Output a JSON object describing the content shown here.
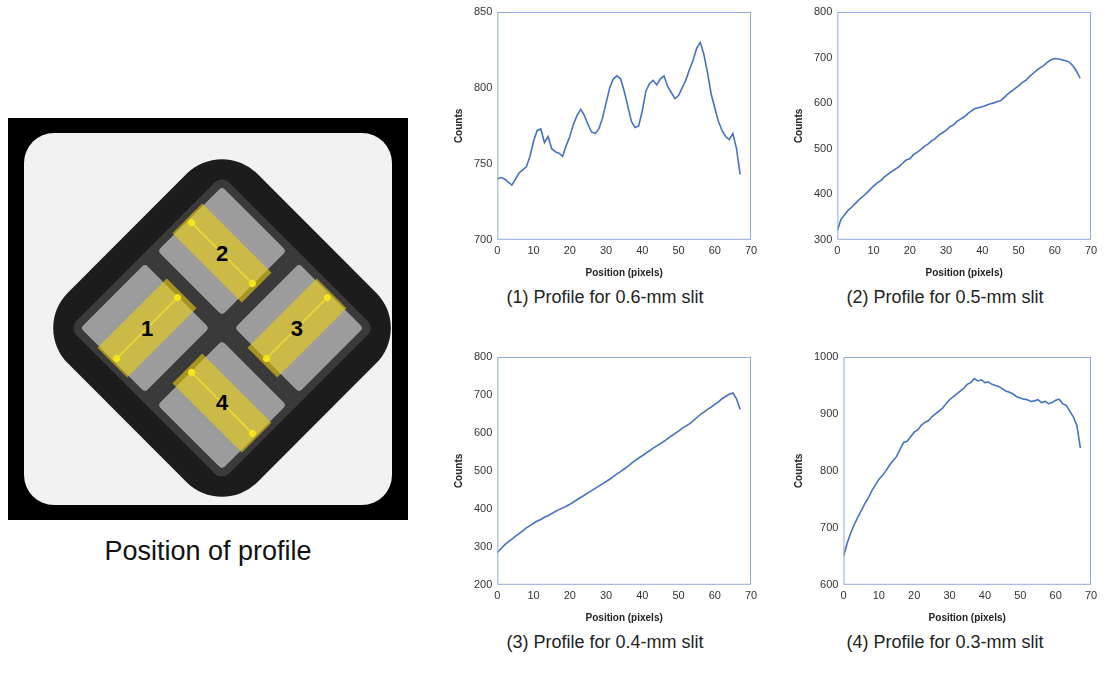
{
  "image": {
    "caption": "Position of profile",
    "labels": [
      "1",
      "2",
      "3",
      "4"
    ]
  },
  "chart_data": [
    {
      "type": "line",
      "title": "(1) Profile for 0.6-mm slit",
      "x_label": "Position (pixels)",
      "y_label": "Counts",
      "color": "#4472c4",
      "grid": false,
      "xlim": [
        0,
        70
      ],
      "xticks": [
        0,
        10,
        20,
        30,
        40,
        50,
        60,
        70
      ],
      "ylim": [
        700,
        850
      ],
      "yticks": [
        700,
        750,
        800,
        850
      ],
      "x": [
        0,
        1,
        2,
        3,
        4,
        5,
        6,
        7,
        8,
        9,
        10,
        11,
        12,
        13,
        14,
        15,
        16,
        17,
        18,
        19,
        20,
        21,
        22,
        23,
        24,
        25,
        26,
        27,
        28,
        29,
        30,
        31,
        32,
        33,
        34,
        35,
        36,
        37,
        38,
        39,
        40,
        41,
        42,
        43,
        44,
        45,
        46,
        47,
        48,
        49,
        50,
        51,
        52,
        53,
        54,
        55,
        56,
        57,
        58,
        59,
        60,
        61,
        62,
        63,
        64,
        65,
        66,
        67
      ],
      "values": [
        740,
        741,
        740,
        738,
        736,
        740,
        744,
        746,
        748,
        755,
        765,
        772,
        773,
        764,
        768,
        760,
        758,
        757,
        755,
        762,
        768,
        776,
        782,
        786,
        782,
        776,
        771,
        770,
        773,
        780,
        790,
        800,
        806,
        808,
        806,
        798,
        788,
        778,
        774,
        775,
        785,
        798,
        803,
        805,
        802,
        806,
        808,
        801,
        797,
        793,
        795,
        800,
        805,
        812,
        818,
        826,
        830,
        822,
        810,
        796,
        787,
        778,
        772,
        768,
        766,
        770,
        760,
        743
      ]
    },
    {
      "type": "line",
      "title": "(2) Profile for 0.5-mm slit",
      "x_label": "Position (pixels)",
      "y_label": "Counts",
      "color": "#4472c4",
      "grid": false,
      "xlim": [
        0,
        70
      ],
      "xticks": [
        0,
        10,
        20,
        30,
        40,
        50,
        60,
        70
      ],
      "ylim": [
        300,
        800
      ],
      "yticks": [
        300,
        400,
        500,
        600,
        700,
        800
      ],
      "x": [
        0,
        1,
        2,
        3,
        4,
        5,
        6,
        7,
        8,
        9,
        10,
        11,
        12,
        13,
        14,
        15,
        16,
        17,
        18,
        19,
        20,
        21,
        22,
        23,
        24,
        25,
        26,
        27,
        28,
        29,
        30,
        31,
        32,
        33,
        34,
        35,
        36,
        37,
        38,
        39,
        40,
        41,
        42,
        43,
        44,
        45,
        46,
        47,
        48,
        49,
        50,
        51,
        52,
        53,
        54,
        55,
        56,
        57,
        58,
        59,
        60,
        61,
        62,
        63,
        64,
        65,
        66,
        67
      ],
      "values": [
        320,
        345,
        355,
        365,
        372,
        380,
        388,
        395,
        402,
        410,
        418,
        425,
        430,
        438,
        444,
        450,
        455,
        460,
        468,
        475,
        478,
        487,
        492,
        498,
        505,
        510,
        517,
        522,
        530,
        535,
        540,
        548,
        552,
        560,
        565,
        570,
        577,
        583,
        588,
        590,
        592,
        595,
        598,
        600,
        603,
        605,
        612,
        620,
        626,
        632,
        638,
        645,
        650,
        658,
        665,
        672,
        678,
        683,
        690,
        695,
        698,
        697,
        695,
        693,
        690,
        682,
        670,
        655
      ]
    },
    {
      "type": "line",
      "title": "(3) Profile for 0.4-mm slit",
      "x_label": "Position (pixels)",
      "y_label": "Counts",
      "color": "#4472c4",
      "grid": false,
      "xlim": [
        0,
        70
      ],
      "xticks": [
        0,
        10,
        20,
        30,
        40,
        50,
        60,
        70
      ],
      "ylim": [
        200,
        800
      ],
      "yticks": [
        200,
        300,
        400,
        500,
        600,
        700,
        800
      ],
      "x": [
        0,
        1,
        2,
        3,
        4,
        5,
        6,
        7,
        8,
        9,
        10,
        11,
        12,
        13,
        14,
        15,
        16,
        17,
        18,
        19,
        20,
        21,
        22,
        23,
        24,
        25,
        26,
        27,
        28,
        29,
        30,
        31,
        32,
        33,
        34,
        35,
        36,
        37,
        38,
        39,
        40,
        41,
        42,
        43,
        44,
        45,
        46,
        47,
        48,
        49,
        50,
        51,
        52,
        53,
        54,
        55,
        56,
        57,
        58,
        59,
        60,
        61,
        62,
        63,
        64,
        65,
        66,
        67
      ],
      "values": [
        285,
        295,
        305,
        313,
        320,
        328,
        335,
        342,
        350,
        356,
        362,
        368,
        372,
        378,
        382,
        388,
        393,
        398,
        402,
        407,
        412,
        418,
        424,
        430,
        436,
        442,
        448,
        454,
        460,
        466,
        472,
        478,
        485,
        492,
        498,
        505,
        512,
        520,
        527,
        534,
        540,
        547,
        553,
        560,
        566,
        572,
        578,
        585,
        592,
        598,
        605,
        612,
        618,
        624,
        632,
        640,
        648,
        655,
        662,
        668,
        675,
        682,
        690,
        696,
        702,
        705,
        690,
        662
      ]
    },
    {
      "type": "line",
      "title": "(4) Profile for 0.3-mm slit",
      "x_label": "Position (pixels)",
      "y_label": "Counts",
      "color": "#4472c4",
      "grid": false,
      "xlim": [
        0,
        70
      ],
      "xticks": [
        0,
        10,
        20,
        30,
        40,
        50,
        60,
        70
      ],
      "ylim": [
        600,
        1000
      ],
      "yticks": [
        600,
        700,
        800,
        900,
        1000
      ],
      "x": [
        0,
        1,
        2,
        3,
        4,
        5,
        6,
        7,
        8,
        9,
        10,
        11,
        12,
        13,
        14,
        15,
        16,
        17,
        18,
        19,
        20,
        21,
        22,
        23,
        24,
        25,
        26,
        27,
        28,
        29,
        30,
        31,
        32,
        33,
        34,
        35,
        36,
        37,
        38,
        39,
        40,
        41,
        42,
        43,
        44,
        45,
        46,
        47,
        48,
        49,
        50,
        51,
        52,
        53,
        54,
        55,
        56,
        57,
        58,
        59,
        60,
        61,
        62,
        63,
        64,
        65,
        66,
        67
      ],
      "values": [
        650,
        672,
        690,
        705,
        718,
        730,
        742,
        752,
        765,
        775,
        785,
        792,
        800,
        810,
        818,
        825,
        838,
        850,
        852,
        860,
        868,
        872,
        880,
        885,
        888,
        895,
        900,
        905,
        910,
        918,
        925,
        930,
        935,
        940,
        945,
        952,
        955,
        962,
        958,
        960,
        955,
        956,
        952,
        950,
        948,
        944,
        940,
        938,
        935,
        930,
        928,
        926,
        925,
        922,
        923,
        925,
        920,
        922,
        918,
        920,
        924,
        926,
        918,
        915,
        905,
        895,
        880,
        840
      ]
    }
  ]
}
